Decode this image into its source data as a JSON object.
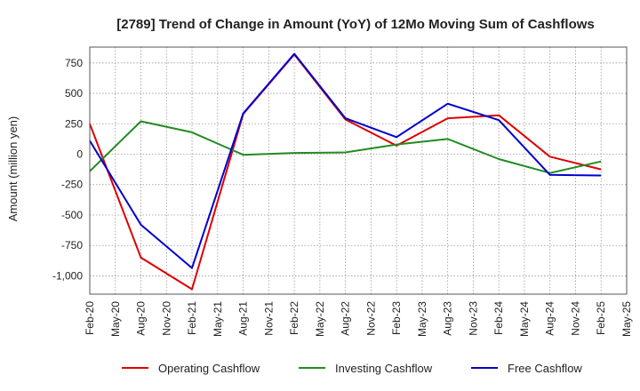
{
  "chart_data": {
    "type": "line",
    "title": "[2789]  Trend of Change in Amount (YoY) of 12Mo Moving Sum of Cashflows",
    "xlabel": "",
    "ylabel": "Amount (million yen)",
    "ylim": [
      -1150,
      880
    ],
    "y_ticks": [
      750,
      500,
      250,
      0,
      -250,
      -500,
      -750,
      -1000
    ],
    "y_tick_labels": [
      "750",
      "500",
      "250",
      "0",
      "-250",
      "-500",
      "-750",
      "-1,000"
    ],
    "x": [
      "Feb-20",
      "May-20",
      "Aug-20",
      "Nov-20",
      "Feb-21",
      "May-21",
      "Aug-21",
      "Nov-21",
      "Feb-22",
      "May-22",
      "Aug-22",
      "Nov-22",
      "Feb-23",
      "May-23",
      "Aug-23",
      "Nov-23",
      "Feb-24",
      "May-24",
      "Aug-24",
      "Nov-24",
      "Feb-25",
      "May-25"
    ],
    "grid": true,
    "legend_position": "bottom",
    "series": [
      {
        "name": "Operating Cashflow",
        "color": "#dd0000",
        "points": [
          [
            0,
            250
          ],
          [
            2,
            -850
          ],
          [
            4,
            -1110
          ],
          [
            6,
            330
          ],
          [
            8,
            820
          ],
          [
            10,
            285
          ],
          [
            12,
            70
          ],
          [
            14,
            295
          ],
          [
            16,
            320
          ],
          [
            18,
            -20
          ],
          [
            20,
            -125
          ]
        ]
      },
      {
        "name": "Investing Cashflow",
        "color": "#228B22",
        "points": [
          [
            0,
            -140
          ],
          [
            2,
            270
          ],
          [
            4,
            180
          ],
          [
            6,
            -5
          ],
          [
            8,
            10
          ],
          [
            10,
            15
          ],
          [
            12,
            80
          ],
          [
            14,
            125
          ],
          [
            16,
            -40
          ],
          [
            18,
            -155
          ],
          [
            20,
            -60
          ]
        ]
      },
      {
        "name": "Free Cashflow",
        "color": "#0000cc",
        "points": [
          [
            0,
            110
          ],
          [
            2,
            -580
          ],
          [
            4,
            -935
          ],
          [
            6,
            335
          ],
          [
            8,
            825
          ],
          [
            10,
            295
          ],
          [
            12,
            140
          ],
          [
            14,
            415
          ],
          [
            16,
            280
          ],
          [
            18,
            -170
          ],
          [
            20,
            -175
          ]
        ]
      }
    ]
  }
}
